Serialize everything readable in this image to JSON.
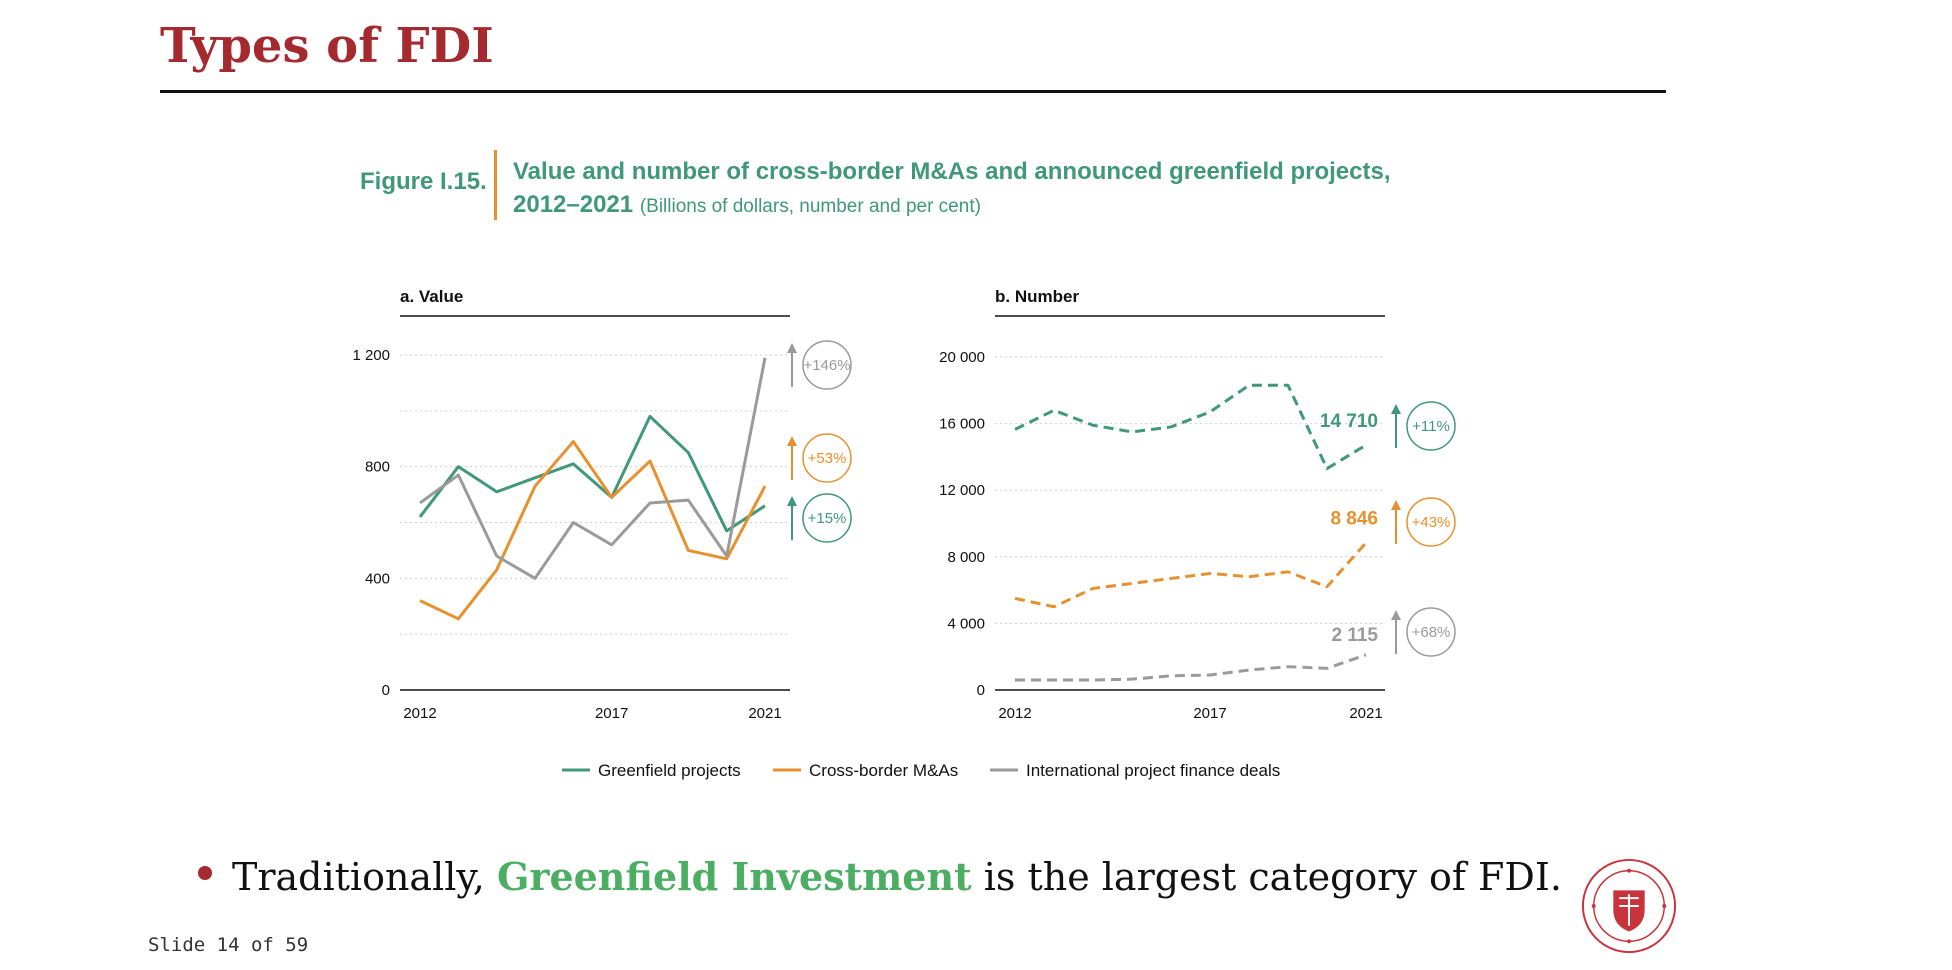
{
  "slide": {
    "title": "Types of FDI",
    "counter": "Slide 14 of 59",
    "bullet": {
      "prefix": "Traditionally, ",
      "highlight": "Greenfield Investment",
      "suffix": " is the largest category of FDI."
    },
    "seal_icon": "carnegie-mellon-university-seal"
  },
  "figure": {
    "label": "Figure I.15.",
    "title_main": "Value and number of cross-border M&As and announced greenfield projects, 2012–2021",
    "title_sub": "(Billions of dollars, number and per cent)"
  },
  "colors": {
    "greenfield": "#3f9878",
    "mna": "#e8902e",
    "finance": "#9a9a9a",
    "title": "#a52a2f"
  },
  "chart_data": [
    {
      "type": "line",
      "title": "a. Value",
      "x": [
        2012,
        2013,
        2014,
        2015,
        2016,
        2017,
        2018,
        2019,
        2020,
        2021
      ],
      "xticks": [
        "2012",
        "2017",
        "2021"
      ],
      "yticks": [
        "0",
        "400",
        "800",
        "1 200"
      ],
      "ylim": [
        0,
        1200
      ],
      "grid": true,
      "line_style": "solid",
      "series": [
        {
          "name": "Greenfield projects",
          "color": "#3f9878",
          "values": [
            620,
            800,
            710,
            760,
            810,
            690,
            980,
            850,
            570,
            660
          ],
          "change": "+15%"
        },
        {
          "name": "Cross-border M&As",
          "color": "#e8902e",
          "values": [
            320,
            255,
            430,
            730,
            890,
            690,
            820,
            500,
            470,
            730
          ],
          "change": "+53%"
        },
        {
          "name": "International project finance deals",
          "color": "#9a9a9a",
          "values": [
            670,
            770,
            480,
            400,
            600,
            520,
            670,
            680,
            480,
            1190
          ],
          "change": "+146%"
        }
      ]
    },
    {
      "type": "line",
      "title": "b. Number",
      "x": [
        2012,
        2013,
        2014,
        2015,
        2016,
        2017,
        2018,
        2019,
        2020,
        2021
      ],
      "xticks": [
        "2012",
        "2017",
        "2021"
      ],
      "yticks": [
        "0",
        "4 000",
        "8 000",
        "12 000",
        "16 000",
        "20 000"
      ],
      "ylim": [
        0,
        20000
      ],
      "grid": true,
      "line_style": "dashed",
      "series": [
        {
          "name": "Greenfield projects",
          "color": "#3f9878",
          "values": [
            15650,
            16800,
            15900,
            15500,
            15800,
            16700,
            18300,
            18300,
            13300,
            14710
          ],
          "end_label": "14 710",
          "change": "+11%"
        },
        {
          "name": "Cross-border M&As",
          "color": "#e8902e",
          "values": [
            5500,
            5000,
            6100,
            6400,
            6700,
            7000,
            6800,
            7100,
            6200,
            8846
          ],
          "end_label": "8 846",
          "change": "+43%"
        },
        {
          "name": "International project finance deals",
          "color": "#9a9a9a",
          "values": [
            600,
            600,
            600,
            650,
            850,
            900,
            1200,
            1400,
            1300,
            2115
          ],
          "end_label": "2 115",
          "change": "+68%"
        }
      ]
    }
  ],
  "legend": {
    "placement": "bottom-center",
    "items": [
      {
        "label": "Greenfield projects",
        "color": "#3f9878"
      },
      {
        "label": "Cross-border M&As",
        "color": "#e8902e"
      },
      {
        "label": "International project finance deals",
        "color": "#9a9a9a"
      }
    ]
  }
}
